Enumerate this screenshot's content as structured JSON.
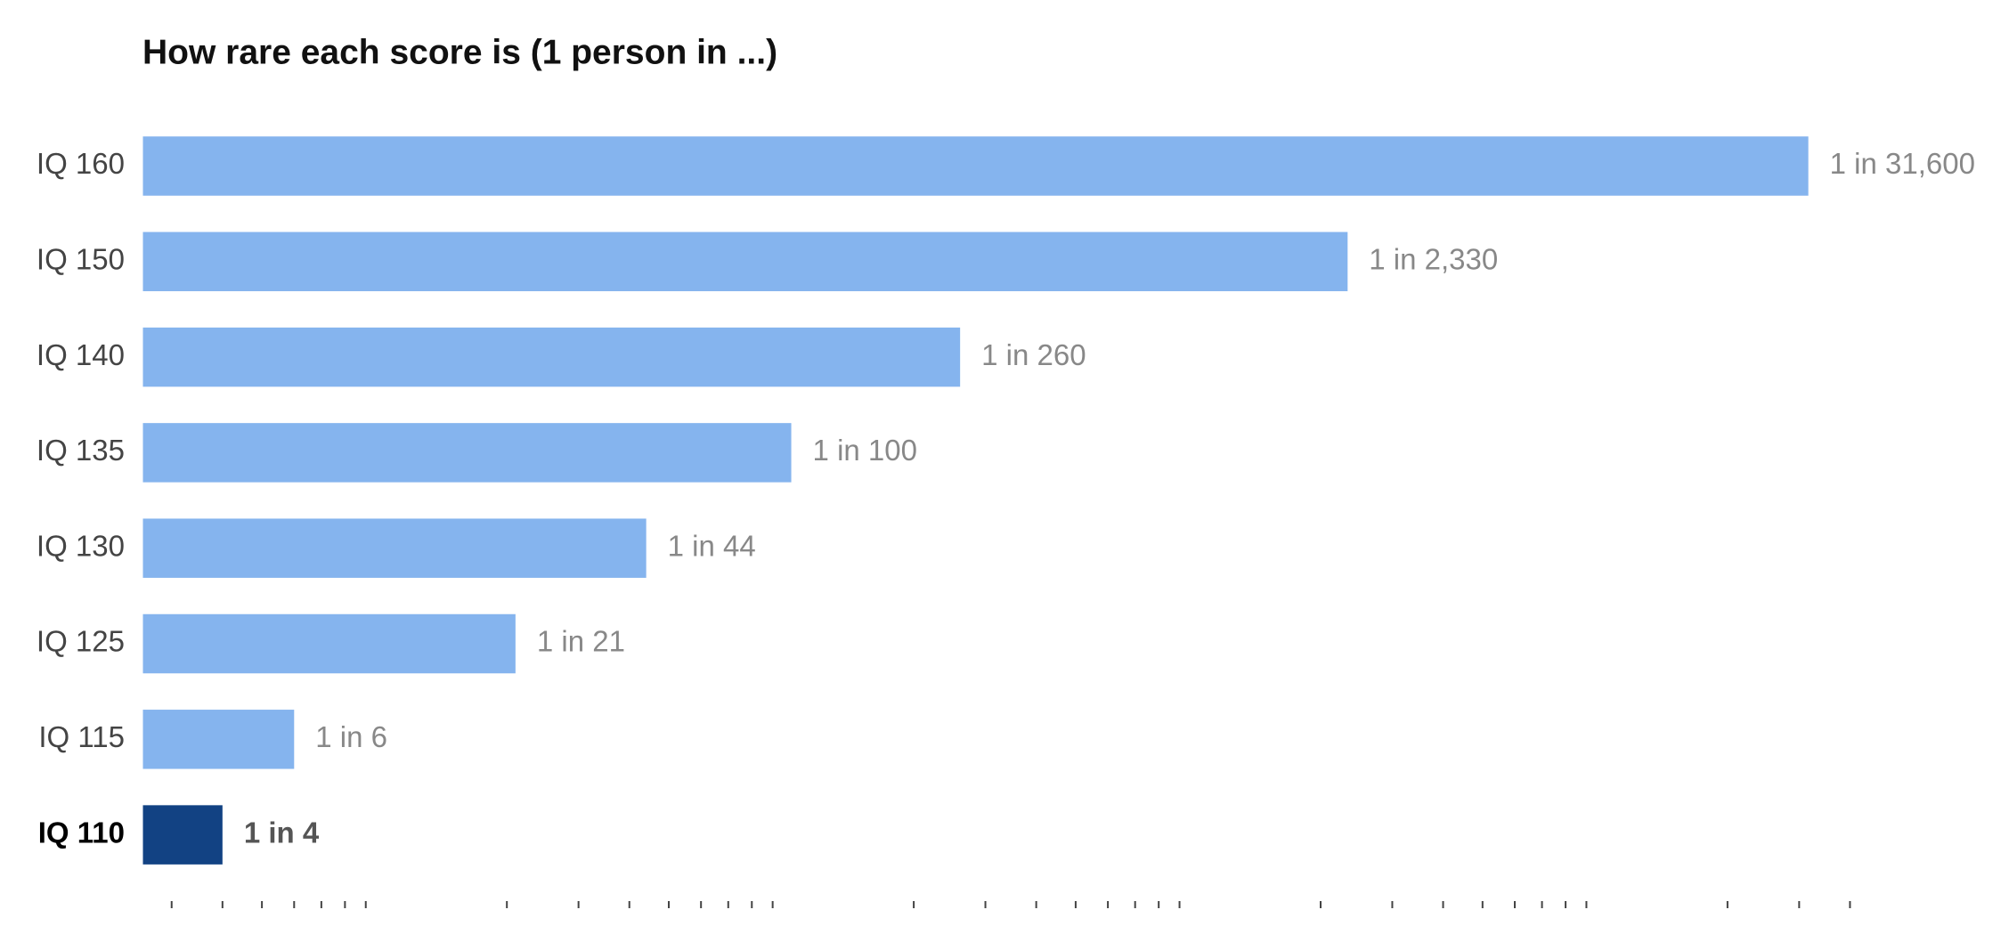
{
  "chart_data": {
    "type": "hbar",
    "title": "How rare each score is (1 person in ...)",
    "categories": [
      "IQ 160",
      "IQ 150",
      "IQ 140",
      "IQ 135",
      "IQ 130",
      "IQ 125",
      "IQ 115",
      "IQ 110"
    ],
    "values": [
      31600,
      2330,
      260,
      100,
      44,
      21,
      6,
      4
    ],
    "value_labels": [
      "1 in 31,600",
      "1 in 2,330",
      "1 in 260",
      "1 in 100",
      "1 in 44",
      "1 in 21",
      "1 in 6",
      "1 in 4"
    ],
    "colors": [
      "#85b4ee",
      "#85b4ee",
      "#85b4ee",
      "#85b4ee",
      "#85b4ee",
      "#85b4ee",
      "#85b4ee",
      "#124283"
    ],
    "xscale": "log",
    "xlim": [
      2.55,
      85000
    ],
    "xticks": [
      3,
      4,
      5,
      6,
      7,
      8,
      9,
      20,
      30,
      40,
      50,
      60,
      70,
      80,
      90,
      200,
      300,
      400,
      500,
      600,
      700,
      800,
      900,
      2000,
      3000,
      4000,
      5000,
      6000,
      7000,
      8000,
      9000,
      20000,
      30000,
      40000
    ]
  }
}
